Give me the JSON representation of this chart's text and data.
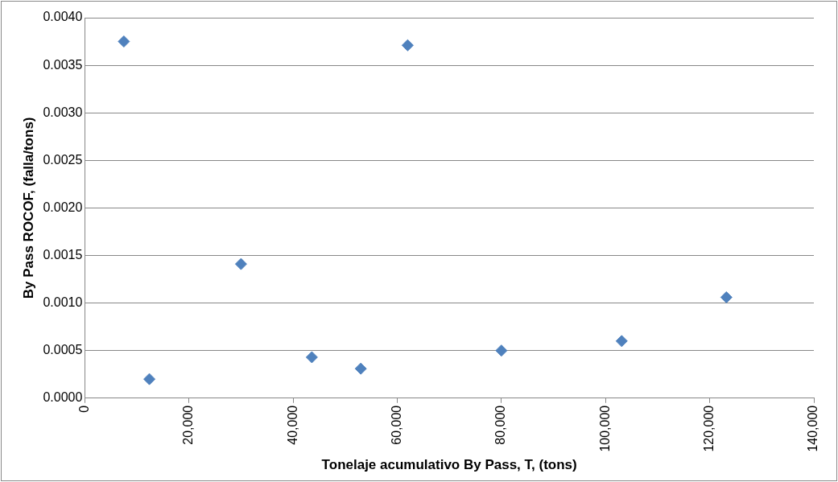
{
  "chart_data": {
    "type": "scatter",
    "xlabel": "Tonelaje acumulativo By Pass, T, (tons)",
    "ylabel": "By Pass ROCOF, (falla/tons)",
    "x": [
      7500,
      12400,
      30000,
      43600,
      53000,
      62000,
      80000,
      103100,
      123200
    ],
    "series": [
      {
        "color": "#4f81bd",
        "values": [
          0.00375,
          0.0002,
          0.00141,
          0.00043,
          0.00031,
          0.00371,
          0.0005,
          0.0006,
          0.00106
        ]
      }
    ],
    "xlim": [
      0,
      140000
    ],
    "xticks": [
      0,
      {
        "value": 20000,
        "label": "20,000"
      },
      {
        "value": 40000,
        "label": "40,000"
      },
      {
        "value": 60000,
        "label": "60,000"
      },
      {
        "value": 80000,
        "label": "80,000"
      },
      {
        "value": 100000,
        "label": "100,000"
      },
      {
        "value": 120000,
        "label": "120,000"
      },
      {
        "value": 140000,
        "label": "140,000"
      }
    ],
    "ylim": [
      0,
      0.004
    ],
    "yticks": [
      {
        "value": 0,
        "label": "0.0000"
      },
      {
        "value": 0.0005,
        "label": "0.0005"
      },
      {
        "value": 0.001,
        "label": "0.0010"
      },
      {
        "value": 0.0015,
        "label": "0.0015"
      },
      {
        "value": 0.002,
        "label": "0.0020"
      },
      {
        "value": 0.0025,
        "label": "0.0025"
      },
      {
        "value": 0.003,
        "label": "0.0030"
      },
      {
        "value": 0.0035,
        "label": "0.0035"
      },
      {
        "value": 0.004,
        "label": "0.0040"
      }
    ],
    "grid": "y",
    "legend": false,
    "marker": "diamond"
  }
}
